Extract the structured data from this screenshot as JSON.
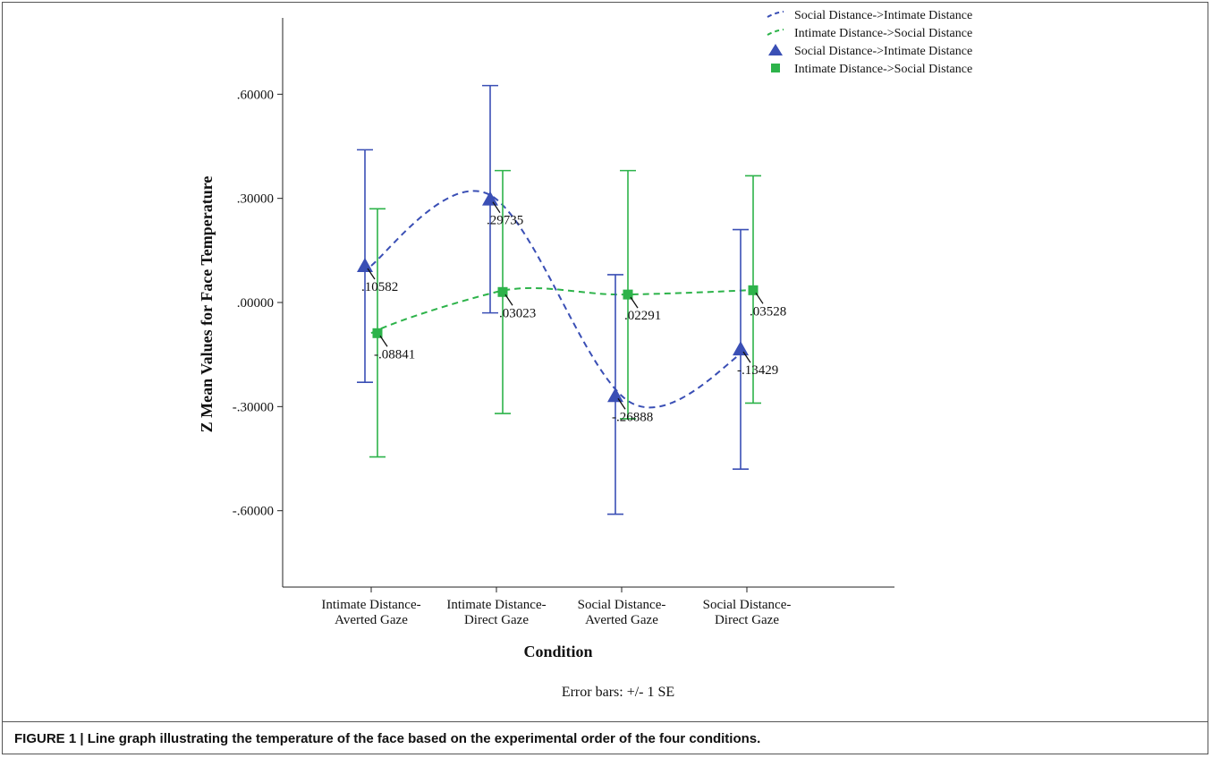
{
  "chart_data": {
    "type": "line",
    "xlabel": "Condition",
    "ylabel": "Z Mean Values for Face Temperature",
    "ylim": [
      -0.82,
      0.82
    ],
    "yticks": [
      0.6,
      0.3,
      0.0,
      -0.3,
      -0.6
    ],
    "ytick_labels": [
      ".60000",
      ".30000",
      ".00000",
      "-.30000",
      "-.60000"
    ],
    "categories": [
      [
        "Intimate Distance-",
        "Averted Gaze"
      ],
      [
        "Intimate Distance-",
        "Direct Gaze"
      ],
      [
        "Social Distance-",
        "Averted Gaze"
      ],
      [
        "Social Distance-",
        "Direct Gaze"
      ]
    ],
    "series": [
      {
        "name": "Social Distance->Intimate Distance",
        "color": "#3a4fb5",
        "marker": "triangle",
        "values": [
          0.10582,
          0.29735,
          -0.26888,
          -0.13429
        ],
        "labels": [
          ".10582",
          ".29735",
          "-.26888",
          "-.13429"
        ],
        "error_low": [
          -0.23,
          -0.03,
          -0.61,
          -0.48
        ],
        "error_high": [
          0.44,
          0.625,
          0.08,
          0.21
        ]
      },
      {
        "name": "Intimate Distance->Social Distance",
        "color": "#2db34a",
        "marker": "square",
        "values": [
          -0.08841,
          0.03023,
          0.02291,
          0.03528
        ],
        "labels": [
          "-.08841",
          ".03023",
          ".02291",
          ".03528"
        ],
        "error_low": [
          -0.445,
          -0.32,
          -0.335,
          -0.29
        ],
        "error_high": [
          0.27,
          0.38,
          0.38,
          0.365
        ]
      }
    ],
    "legend": {
      "position": "top-right",
      "entries": [
        {
          "label": "Social Distance->Intimate Distance",
          "kind": "dashed-line",
          "series": 0
        },
        {
          "label": "Intimate Distance->Social Distance",
          "kind": "dashed-line",
          "series": 1
        },
        {
          "label": "Social Distance->Intimate Distance",
          "kind": "triangle-marker",
          "series": 0
        },
        {
          "label": "Intimate Distance->Social Distance",
          "kind": "square-marker",
          "series": 1
        }
      ]
    },
    "note": "Error bars: +/- 1 SE",
    "grid": false
  },
  "caption": "FIGURE 1 | Line graph illustrating the temperature of the face based on the experimental order of the four conditions."
}
